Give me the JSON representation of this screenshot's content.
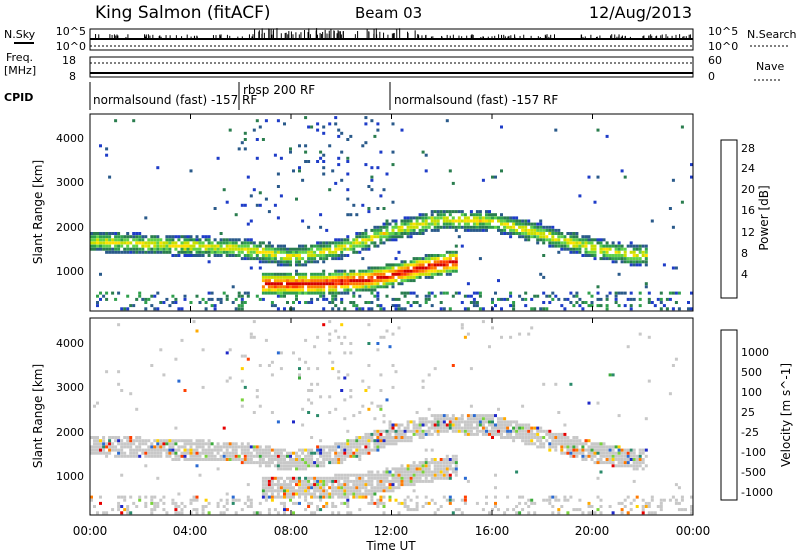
{
  "header": {
    "station": "King Salmon (fitACF)",
    "beam": "Beam 03",
    "date": "12/Aug/2013"
  },
  "strip_labels": {
    "nsky": "N.Sky",
    "nsearch": "N.Search",
    "freq_line1": "Freq.",
    "freq_line2": "[MHz]",
    "nave": "Nave",
    "cpid": "CPID",
    "top_ticks_left": [
      "10^5",
      "10^0"
    ],
    "top_ticks_right": [
      "10^5",
      "10^0"
    ],
    "freq_ticks": [
      "18",
      "8"
    ],
    "nave_ticks": [
      "60",
      "0"
    ]
  },
  "cpid_segments": [
    {
      "label": "normalsound (fast) -157 RF",
      "start_hour": 0
    },
    {
      "label": "rbsp 200 RF",
      "start_hour": 6
    },
    {
      "label": "normalsound (fast) -157 RF",
      "start_hour": 12
    }
  ],
  "power_colorbar": {
    "title": "Power [dB]",
    "ticks": [
      "28",
      "24",
      "20",
      "16",
      "12",
      "8",
      "4"
    ],
    "colors": [
      "#d40000",
      "#ff3c00",
      "#ff7a00",
      "#ffb000",
      "#ffe000",
      "#c8e000",
      "#5fd24a",
      "#2fa04c",
      "#2a7d4e",
      "#2a5a8a",
      "#1e3cc8",
      "#0000ff"
    ]
  },
  "velocity_colorbar": {
    "title": "Velocity [m s^-1]",
    "ticks": [
      "1000",
      "500",
      "100",
      "25",
      "-25",
      "-100",
      "-500",
      "-1000"
    ],
    "colors": [
      "#1e28c8",
      "#2a6ad2",
      "#2a8a6a",
      "#3caa3c",
      "#7ad23c",
      "#c8c8c8",
      "#c8c8c8",
      "#ffd200",
      "#ffaa00",
      "#ff7a00",
      "#ff4000",
      "#e60000"
    ]
  },
  "chart_data": [
    {
      "type": "heatmap",
      "title": "Power",
      "xlabel": "",
      "ylabel": "Slant Range [km]",
      "xlim": [
        0,
        24
      ],
      "ylim": [
        200,
        4600
      ],
      "y_ticks": [
        "1000",
        "2000",
        "3000",
        "4000"
      ],
      "colorbar_label": "Power [dB]",
      "colorbar_range": [
        0,
        30
      ],
      "features": [
        {
          "name": "band-main",
          "x_hours": [
            0,
            2,
            4,
            6,
            8,
            10,
            12,
            14,
            16,
            18,
            20,
            21.5
          ],
          "y_km": [
            1750,
            1700,
            1650,
            1600,
            1400,
            1600,
            2000,
            2250,
            2200,
            1900,
            1600,
            1450
          ],
          "peak_db": 14
        },
        {
          "name": "band-low",
          "x_hours": [
            7,
            8,
            9,
            10,
            11,
            12,
            13,
            14,
            14.5
          ],
          "y_km": [
            800,
            800,
            800,
            850,
            900,
            1000,
            1150,
            1250,
            1300
          ],
          "peak_db": 28
        }
      ]
    },
    {
      "type": "heatmap",
      "title": "Velocity",
      "xlabel": "Time UT",
      "ylabel": "Slant Range [km]",
      "xlim": [
        0,
        24
      ],
      "ylim": [
        200,
        4600
      ],
      "x_ticks": [
        "00:00",
        "04:00",
        "08:00",
        "12:00",
        "16:00",
        "20:00",
        "00:00"
      ],
      "y_ticks": [
        "1000",
        "2000",
        "3000",
        "4000"
      ],
      "colorbar_label": "Velocity [m s^-1]",
      "colorbar_range": [
        -1000,
        1000
      ]
    }
  ]
}
